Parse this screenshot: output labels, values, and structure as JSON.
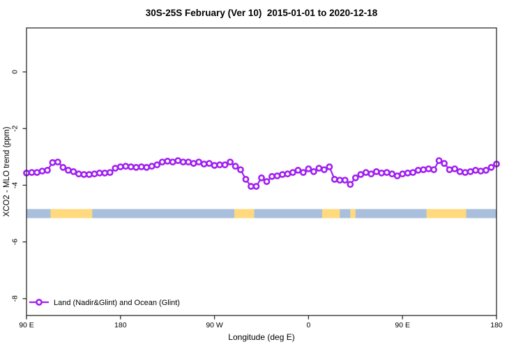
{
  "title": "30S-25S February (Ver 10)  2015-01-01 to 2020-12-18",
  "chart_data": {
    "type": "line",
    "title": "30S-25S February (Ver 10)  2015-01-01 to 2020-12-18",
    "xlabel": "Longitude (deg E)",
    "ylabel": "XCO2 - MLO trend (ppm)",
    "xlim": [
      90,
      540
    ],
    "ylim": [
      -8.6,
      1.55
    ],
    "grid": false,
    "x_ticks": [
      {
        "lon": 90,
        "label": "90 E"
      },
      {
        "lon": 180,
        "label": "180"
      },
      {
        "lon": 270,
        "label": "90 W"
      },
      {
        "lon": 360,
        "label": "0"
      },
      {
        "lon": 450,
        "label": "90 E"
      },
      {
        "lon": 540,
        "label": "180"
      }
    ],
    "y_ticks": [
      {
        "value": 0,
        "label": "0"
      },
      {
        "value": -2,
        "label": "-2"
      },
      {
        "value": -4,
        "label": "-4"
      },
      {
        "value": -6,
        "label": "-6"
      },
      {
        "value": -8,
        "label": "-8"
      }
    ],
    "series": [
      {
        "name": "Land (Nadir&Glint) and Ocean (Glint)",
        "color": "#A020F0",
        "marker": "open-circle",
        "x_start": 90,
        "x_step": 5,
        "values": [
          -3.57,
          -3.55,
          -3.55,
          -3.5,
          -3.47,
          -3.2,
          -3.18,
          -3.37,
          -3.47,
          -3.52,
          -3.6,
          -3.62,
          -3.62,
          -3.6,
          -3.57,
          -3.57,
          -3.55,
          -3.4,
          -3.35,
          -3.33,
          -3.35,
          -3.37,
          -3.35,
          -3.37,
          -3.33,
          -3.28,
          -3.18,
          -3.15,
          -3.18,
          -3.13,
          -3.18,
          -3.18,
          -3.23,
          -3.18,
          -3.25,
          -3.23,
          -3.3,
          -3.28,
          -3.28,
          -3.18,
          -3.33,
          -3.45,
          -3.79,
          -4.04,
          -4.04,
          -3.74,
          -3.87,
          -3.69,
          -3.67,
          -3.62,
          -3.6,
          -3.55,
          -3.47,
          -3.55,
          -3.42,
          -3.52,
          -3.4,
          -3.45,
          -3.35,
          -3.79,
          -3.82,
          -3.82,
          -3.97,
          -3.74,
          -3.62,
          -3.55,
          -3.6,
          -3.52,
          -3.57,
          -3.55,
          -3.6,
          -3.67,
          -3.6,
          -3.57,
          -3.55,
          -3.47,
          -3.45,
          -3.42,
          -3.45,
          -3.13,
          -3.23,
          -3.45,
          -3.42,
          -3.52,
          -3.55,
          -3.52,
          -3.47,
          -3.5,
          -3.47,
          -3.37,
          -3.25
        ]
      }
    ],
    "surface_band": {
      "value": -5.0,
      "thickness_ppm": 0.32,
      "range": [
        90,
        540
      ],
      "ocean_color": "#A9BFDC",
      "land_color": "#FFD97E",
      "land_segments": [
        [
          113,
          153
        ],
        [
          289,
          308
        ],
        [
          373,
          390
        ],
        [
          400,
          405
        ],
        [
          473,
          511
        ]
      ]
    },
    "legend": {
      "label": "Land (Nadir&Glint) and Ocean (Glint)",
      "position": "bottom-left"
    },
    "axis_color": "#2b2b2b"
  }
}
